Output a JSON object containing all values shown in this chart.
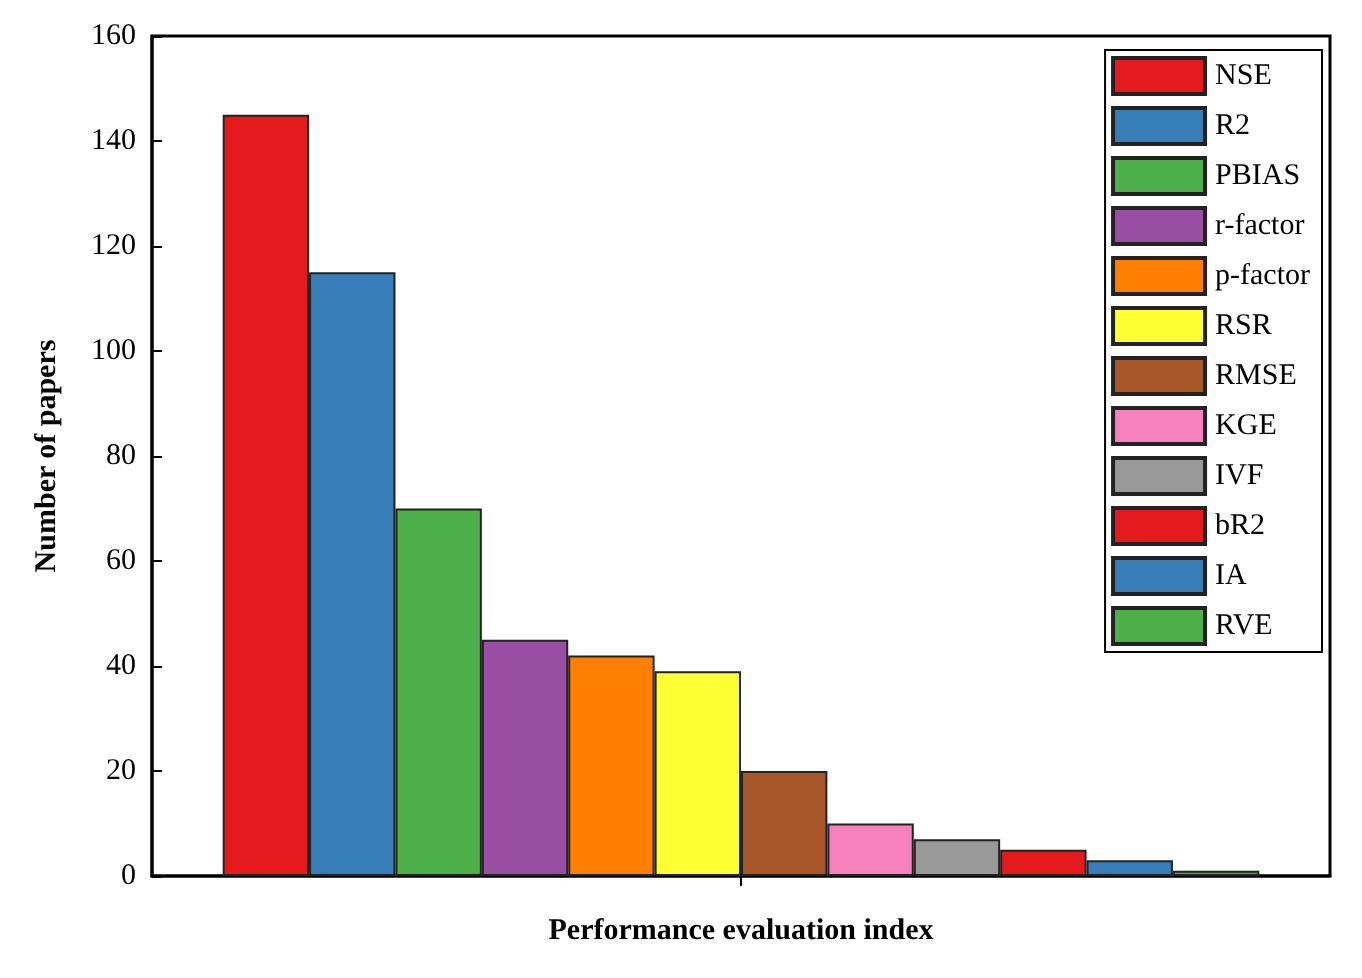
{
  "chart_data": {
    "type": "bar",
    "xlabel": "Performance evaluation index",
    "ylabel": "Number of papers",
    "categories": [
      null
    ],
    "series": [
      {
        "name": "NSE",
        "color": "#e41a1c",
        "values": [
          145
        ]
      },
      {
        "name": "R2",
        "color": "#377eb8",
        "values": [
          115
        ]
      },
      {
        "name": "PBIAS",
        "color": "#4daf4a",
        "values": [
          70
        ]
      },
      {
        "name": "r-factor",
        "color": "#984ea3",
        "values": [
          45
        ]
      },
      {
        "name": "p-factor",
        "color": "#ff7f00",
        "values": [
          42
        ]
      },
      {
        "name": "RSR",
        "color": "#ffff33",
        "values": [
          39
        ]
      },
      {
        "name": "RMSE",
        "color": "#a65628",
        "values": [
          20
        ]
      },
      {
        "name": "KGE",
        "color": "#f781bf",
        "values": [
          10
        ]
      },
      {
        "name": "IVF",
        "color": "#999999",
        "values": [
          7
        ]
      },
      {
        "name": "bR2",
        "color": "#e41a1c",
        "values": [
          5
        ]
      },
      {
        "name": "IA",
        "color": "#377eb8",
        "values": [
          3
        ]
      },
      {
        "name": "RVE",
        "color": "#4daf4a",
        "values": [
          1
        ]
      }
    ],
    "ylim": [
      0,
      160
    ],
    "yticks": [
      0,
      20,
      40,
      60,
      80,
      100,
      120,
      140,
      160
    ],
    "grid": false,
    "legend": "top right"
  }
}
